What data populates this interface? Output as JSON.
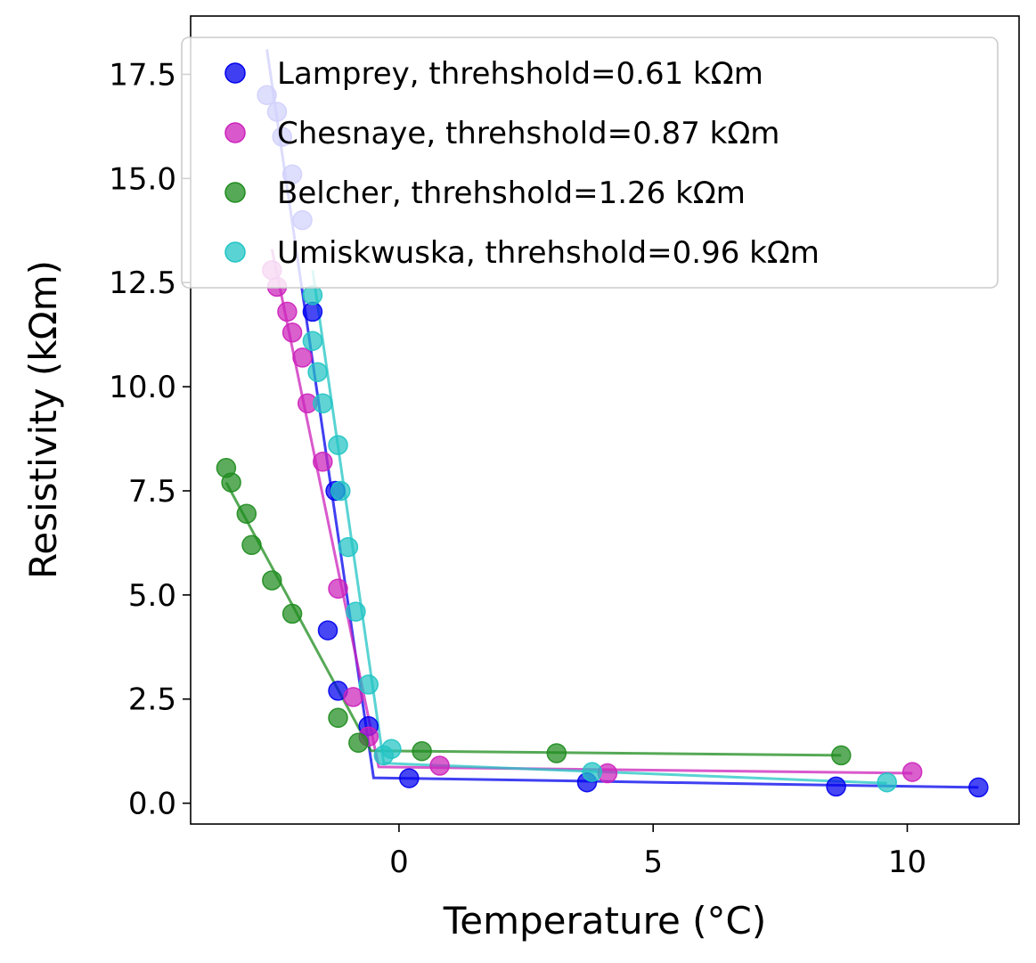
{
  "chart_data": {
    "type": "scatter",
    "xlabel": "Temperature (°C)",
    "ylabel": "Resistivity (kΩm)",
    "xlim": [
      -4.1,
      12.2
    ],
    "ylim": [
      -0.5,
      18.9
    ],
    "xticks": [
      0,
      5,
      10
    ],
    "xtick_labels": [
      "0",
      "5",
      "10"
    ],
    "yticks": [
      0,
      2.5,
      5,
      7.5,
      10,
      12.5,
      15,
      17.5
    ],
    "ytick_labels": [
      "0.0",
      "2.5",
      "5.0",
      "7.5",
      "10.0",
      "12.5",
      "15.0",
      "17.5"
    ],
    "legend_position": "top-right",
    "series": [
      {
        "name": "Lamprey, threhshold=0.61 kΩm",
        "color": "#0000ee",
        "points": [
          [
            -2.6,
            17.0
          ],
          [
            -2.4,
            16.6
          ],
          [
            -2.3,
            16.0
          ],
          [
            -2.1,
            15.1
          ],
          [
            -1.9,
            14.0
          ],
          [
            -1.7,
            11.8
          ],
          [
            -1.4,
            4.15
          ],
          [
            -1.25,
            7.5
          ],
          [
            -1.2,
            2.7
          ],
          [
            -0.6,
            1.85
          ],
          [
            0.2,
            0.6
          ],
          [
            3.7,
            0.5
          ],
          [
            8.6,
            0.4
          ],
          [
            11.4,
            0.38
          ]
        ],
        "fit": [
          [
            -2.6,
            18.1
          ],
          [
            -0.5,
            0.61
          ],
          [
            11.4,
            0.38
          ]
        ]
      },
      {
        "name": "Chesnaye, threhshold=0.87 kΩm",
        "color": "#cc22bb",
        "points": [
          [
            -2.5,
            12.8
          ],
          [
            -2.4,
            12.4
          ],
          [
            -2.2,
            11.8
          ],
          [
            -2.1,
            11.3
          ],
          [
            -1.9,
            10.7
          ],
          [
            -1.8,
            9.6
          ],
          [
            -1.5,
            8.2
          ],
          [
            -1.2,
            5.15
          ],
          [
            -0.9,
            2.55
          ],
          [
            -0.6,
            1.6
          ],
          [
            0.8,
            0.9
          ],
          [
            4.1,
            0.72
          ],
          [
            10.1,
            0.75
          ]
        ],
        "fit": [
          [
            -2.5,
            13.3
          ],
          [
            -0.4,
            0.87
          ],
          [
            10.1,
            0.72
          ]
        ]
      },
      {
        "name": "Belcher, threhshold=1.26 kΩm",
        "color": "#1e8c1e",
        "points": [
          [
            -3.4,
            8.05
          ],
          [
            -3.3,
            7.7
          ],
          [
            -3.0,
            6.95
          ],
          [
            -2.9,
            6.2
          ],
          [
            -2.5,
            5.35
          ],
          [
            -2.1,
            4.55
          ],
          [
            -1.2,
            2.05
          ],
          [
            -0.8,
            1.45
          ],
          [
            0.45,
            1.25
          ],
          [
            3.1,
            1.2
          ],
          [
            8.7,
            1.15
          ]
        ],
        "fit": [
          [
            -3.4,
            7.7
          ],
          [
            -0.55,
            1.26
          ],
          [
            8.7,
            1.15
          ]
        ]
      },
      {
        "name": "Umiskwuska, threhshold=0.96 kΩm",
        "color": "#22c4c4",
        "points": [
          [
            -1.7,
            12.2
          ],
          [
            -1.7,
            11.1
          ],
          [
            -1.6,
            10.35
          ],
          [
            -1.5,
            9.6
          ],
          [
            -1.2,
            8.6
          ],
          [
            -1.15,
            7.5
          ],
          [
            -1.0,
            6.15
          ],
          [
            -0.85,
            4.6
          ],
          [
            -0.6,
            2.85
          ],
          [
            -0.3,
            1.15
          ],
          [
            -0.15,
            1.3
          ],
          [
            3.8,
            0.75
          ],
          [
            9.6,
            0.5
          ]
        ],
        "fit": [
          [
            -1.7,
            12.8
          ],
          [
            -0.3,
            0.96
          ],
          [
            9.6,
            0.48
          ]
        ]
      }
    ]
  }
}
